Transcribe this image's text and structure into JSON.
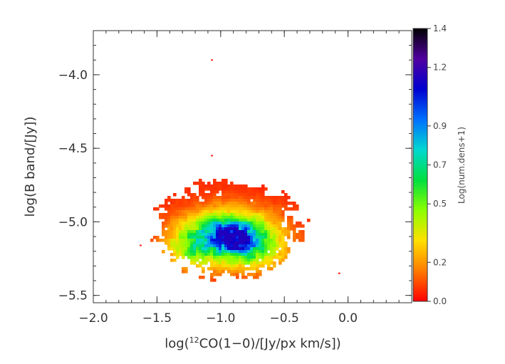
{
  "chart_data": {
    "type": "heatmap",
    "title": "",
    "xlabel": "log(¹²CO(1-0)/[Jy/px km/s])",
    "ylabel": "log(B band/[Jy])",
    "xlim": [
      -2.0,
      0.5
    ],
    "ylim": [
      -5.55,
      -3.7
    ],
    "x_ticks": [
      -2.0,
      -1.5,
      -1.0,
      -0.5,
      0.0
    ],
    "x_tick_labels": [
      "−2.0",
      "−1.5",
      "−1.0",
      "−0.5",
      "0.0"
    ],
    "y_ticks": [
      -4.0,
      -4.5,
      -5.0,
      -5.5
    ],
    "y_tick_labels": [
      "−4.0",
      "−4.5",
      "−5.0",
      "−5.5"
    ],
    "colorbar": {
      "label": "Log(num.dens+1)",
      "range": [
        0.0,
        1.4
      ],
      "ticks": [
        0.0,
        0.2,
        0.5,
        0.7,
        0.9,
        1.2,
        1.4
      ],
      "tick_labels": [
        "0.0",
        "0.2",
        "0.5",
        "0.7",
        "0.9",
        "1.2",
        "1.4"
      ],
      "colors": [
        "#ff0000",
        "#ff7a00",
        "#ffe000",
        "#8cff00",
        "#00e040",
        "#00d8d0",
        "#0070ff",
        "#0000d0",
        "#5000a0",
        "#000000"
      ]
    },
    "density_blobs": [
      {
        "x": -0.93,
        "y": -5.1,
        "sx": 0.24,
        "sy": 0.12,
        "level": 0.75
      },
      {
        "x": -0.95,
        "y": -5.08,
        "sx": 0.1,
        "sy": 0.06,
        "level": 0.4
      },
      {
        "x": -0.85,
        "y": -5.15,
        "sx": 0.08,
        "sy": 0.05,
        "level": 0.3
      },
      {
        "x": -1.25,
        "y": -5.18,
        "sx": 0.14,
        "sy": 0.1,
        "level": 0.25
      },
      {
        "x": -0.7,
        "y": -5.2,
        "sx": 0.16,
        "sy": 0.1,
        "level": 0.2
      }
    ],
    "support": {
      "x_center": -0.95,
      "y_center": -5.05,
      "x_radius": 0.57,
      "y_radius": 0.32
    },
    "outlier_points": [
      {
        "x": -1.07,
        "y": -3.9
      },
      {
        "x": -1.07,
        "y": -4.55
      },
      {
        "x": -0.07,
        "y": -5.35
      },
      {
        "x": -1.63,
        "y": -5.16
      }
    ]
  }
}
